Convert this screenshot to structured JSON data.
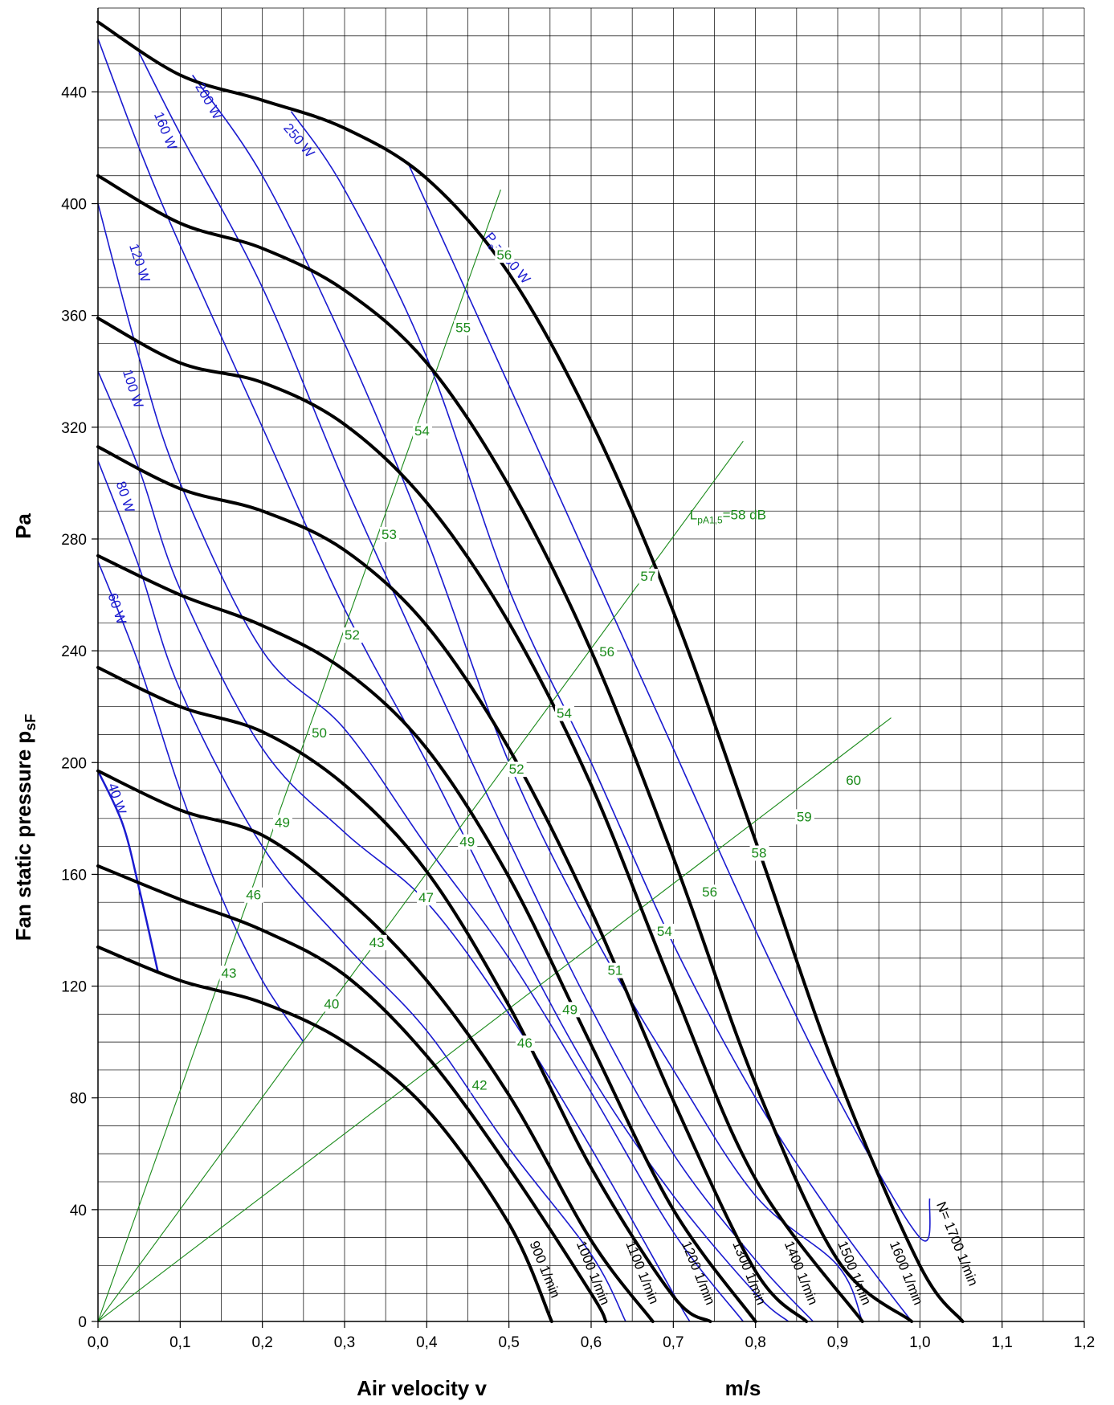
{
  "chart_data": {
    "type": "line",
    "title": "",
    "xlabel": "Air velocity v",
    "xunit": "m/s",
    "ylabel": "Fan static pressure p",
    "ylabel_sub": "sF",
    "yunit": "Pa",
    "xlim": [
      0,
      1.2
    ],
    "ylim": [
      0,
      470
    ],
    "grid": true,
    "x_ticks": [
      "0,0",
      "0,1",
      "0,2",
      "0,3",
      "0,4",
      "0,5",
      "0,6",
      "0,7",
      "0,8",
      "0,9",
      "1,0",
      "1,1",
      "1,2"
    ],
    "x_tick_values": [
      0,
      0.1,
      0.2,
      0.3,
      0.4,
      0.5,
      0.6,
      0.7,
      0.8,
      0.9,
      1.0,
      1.1,
      1.2
    ],
    "y_ticks": [
      "0",
      "40",
      "80",
      "120",
      "160",
      "200",
      "240",
      "280",
      "320",
      "360",
      "400",
      "440"
    ],
    "y_tick_values": [
      0,
      40,
      80,
      120,
      160,
      200,
      240,
      280,
      320,
      360,
      400,
      440
    ],
    "colors": {
      "speed": "#000000",
      "power": "#1a1ad0",
      "noise": "#1a8a1a"
    },
    "speed_curves": [
      {
        "name": "900 1/min",
        "points": [
          [
            0,
            134
          ],
          [
            0.1,
            122
          ],
          [
            0.2,
            114
          ],
          [
            0.3,
            100
          ],
          [
            0.4,
            76
          ],
          [
            0.5,
            35
          ],
          [
            0.552,
            0
          ]
        ]
      },
      {
        "name": "1000 1/min",
        "points": [
          [
            0,
            163
          ],
          [
            0.1,
            151
          ],
          [
            0.2,
            140
          ],
          [
            0.3,
            124
          ],
          [
            0.4,
            95
          ],
          [
            0.5,
            55
          ],
          [
            0.6,
            10
          ],
          [
            0.618,
            0
          ]
        ]
      },
      {
        "name": "1100 1/min",
        "points": [
          [
            0,
            197
          ],
          [
            0.1,
            183
          ],
          [
            0.2,
            174
          ],
          [
            0.3,
            152
          ],
          [
            0.4,
            122
          ],
          [
            0.5,
            81
          ],
          [
            0.6,
            29
          ],
          [
            0.675,
            0
          ]
        ]
      },
      {
        "name": "1200 1/min",
        "points": [
          [
            0,
            234
          ],
          [
            0.1,
            220
          ],
          [
            0.2,
            211
          ],
          [
            0.3,
            192
          ],
          [
            0.4,
            161
          ],
          [
            0.5,
            113
          ],
          [
            0.6,
            55
          ],
          [
            0.7,
            9
          ],
          [
            0.745,
            0
          ]
        ]
      },
      {
        "name": "1300 1/min",
        "points": [
          [
            0,
            274
          ],
          [
            0.1,
            260
          ],
          [
            0.2,
            249
          ],
          [
            0.3,
            233
          ],
          [
            0.4,
            205
          ],
          [
            0.5,
            159
          ],
          [
            0.6,
            99
          ],
          [
            0.7,
            40
          ],
          [
            0.8,
            0
          ]
        ]
      },
      {
        "name": "1400 1/min",
        "points": [
          [
            0,
            313
          ],
          [
            0.1,
            298
          ],
          [
            0.2,
            290
          ],
          [
            0.3,
            276
          ],
          [
            0.4,
            249
          ],
          [
            0.5,
            205
          ],
          [
            0.6,
            147
          ],
          [
            0.7,
            79
          ],
          [
            0.8,
            18
          ],
          [
            0.862,
            0
          ]
        ]
      },
      {
        "name": "1500 1/min",
        "points": [
          [
            0,
            359
          ],
          [
            0.1,
            343
          ],
          [
            0.2,
            336
          ],
          [
            0.3,
            321
          ],
          [
            0.4,
            293
          ],
          [
            0.5,
            250
          ],
          [
            0.6,
            192
          ],
          [
            0.7,
            119
          ],
          [
            0.8,
            51
          ],
          [
            0.93,
            0
          ]
        ]
      },
      {
        "name": "1600 1/min",
        "points": [
          [
            0,
            410
          ],
          [
            0.1,
            393
          ],
          [
            0.2,
            384
          ],
          [
            0.3,
            369
          ],
          [
            0.4,
            343
          ],
          [
            0.5,
            299
          ],
          [
            0.6,
            240
          ],
          [
            0.7,
            166
          ],
          [
            0.8,
            85
          ],
          [
            0.9,
            22
          ],
          [
            0.99,
            0
          ]
        ]
      },
      {
        "name": "N= 1700 1/min",
        "points": [
          [
            0,
            465
          ],
          [
            0.1,
            446
          ],
          [
            0.2,
            437
          ],
          [
            0.3,
            427
          ],
          [
            0.4,
            409
          ],
          [
            0.5,
            375
          ],
          [
            0.6,
            322
          ],
          [
            0.7,
            254
          ],
          [
            0.8,
            172
          ],
          [
            0.9,
            88
          ],
          [
            1.0,
            20
          ],
          [
            1.052,
            0
          ]
        ]
      }
    ],
    "speed_labels": [
      {
        "text": "900 1/min",
        "x": 0.525,
        "y": 28,
        "angle": 68
      },
      {
        "text": "1000 1/min",
        "x": 0.582,
        "y": 28,
        "angle": 68
      },
      {
        "text": "1100 1/min",
        "x": 0.642,
        "y": 28,
        "angle": 68
      },
      {
        "text": "1200 1/min",
        "x": 0.71,
        "y": 28,
        "angle": 68
      },
      {
        "text": "1300 1/min",
        "x": 0.772,
        "y": 28,
        "angle": 68
      },
      {
        "text": "1400 1/min",
        "x": 0.835,
        "y": 28,
        "angle": 68
      },
      {
        "text": "1500 1/min",
        "x": 0.9,
        "y": 28,
        "angle": 68
      },
      {
        "text": "1600 1/min",
        "x": 0.963,
        "y": 28,
        "angle": 68
      },
      {
        "text": "N= 1700 1/min",
        "x": 1.02,
        "y": 42,
        "angle": 68
      }
    ],
    "power_curves": [
      {
        "name": "40 W",
        "points": [
          [
            0,
            197
          ],
          [
            0.03,
            178
          ],
          [
            0.05,
            155
          ],
          [
            0.073,
            125
          ]
        ]
      },
      {
        "name": "60 W",
        "points": [
          [
            0,
            272
          ],
          [
            0.05,
            235
          ],
          [
            0.1,
            190
          ],
          [
            0.15,
            152
          ],
          [
            0.2,
            122
          ],
          [
            0.25,
            100
          ]
        ]
      },
      {
        "name": "80 W",
        "points": [
          [
            0,
            308
          ],
          [
            0.05,
            270
          ],
          [
            0.1,
            226
          ],
          [
            0.2,
            170
          ],
          [
            0.3,
            135
          ],
          [
            0.4,
            104
          ],
          [
            0.5,
            62
          ],
          [
            0.6,
            24
          ],
          [
            0.642,
            0
          ]
        ]
      },
      {
        "name": "100 W",
        "points": [
          [
            0,
            340
          ],
          [
            0.05,
            305
          ],
          [
            0.1,
            262
          ],
          [
            0.2,
            205
          ],
          [
            0.3,
            175
          ],
          [
            0.4,
            150
          ],
          [
            0.5,
            110
          ],
          [
            0.6,
            62
          ],
          [
            0.7,
            10
          ],
          [
            0.72,
            0
          ]
        ]
      },
      {
        "name": "120 W",
        "points": [
          [
            0,
            400
          ],
          [
            0.05,
            345
          ],
          [
            0.1,
            300
          ],
          [
            0.2,
            240
          ],
          [
            0.3,
            212
          ],
          [
            0.4,
            170
          ],
          [
            0.5,
            130
          ],
          [
            0.6,
            82
          ],
          [
            0.7,
            32
          ],
          [
            0.785,
            0
          ]
        ]
      },
      {
        "name": "160 W",
        "points": [
          [
            0,
            459
          ],
          [
            0.05,
            420
          ],
          [
            0.1,
            385
          ],
          [
            0.2,
            320
          ],
          [
            0.3,
            255
          ],
          [
            0.4,
            200
          ],
          [
            0.5,
            142
          ],
          [
            0.6,
            88
          ],
          [
            0.7,
            45
          ],
          [
            0.8,
            10
          ],
          [
            0.84,
            0
          ]
        ]
      },
      {
        "name": "200 W",
        "points": [
          [
            0.05,
            454
          ],
          [
            0.1,
            425
          ],
          [
            0.2,
            370
          ],
          [
            0.3,
            300
          ],
          [
            0.4,
            235
          ],
          [
            0.5,
            172
          ],
          [
            0.6,
            112
          ],
          [
            0.7,
            60
          ],
          [
            0.8,
            22
          ],
          [
            0.87,
            0
          ]
        ]
      },
      {
        "name": "250 W",
        "points": [
          [
            0.115,
            446
          ],
          [
            0.2,
            410
          ],
          [
            0.3,
            350
          ],
          [
            0.4,
            280
          ],
          [
            0.5,
            200
          ],
          [
            0.6,
            140
          ],
          [
            0.7,
            90
          ],
          [
            0.8,
            45
          ],
          [
            0.9,
            20
          ],
          [
            0.93,
            0
          ]
        ]
      },
      {
        "name": "P_e=300 W",
        "points": [
          [
            0.235,
            433
          ],
          [
            0.3,
            405
          ],
          [
            0.4,
            345
          ],
          [
            0.5,
            262
          ],
          [
            0.6,
            200
          ],
          [
            0.7,
            135
          ],
          [
            0.8,
            80
          ],
          [
            0.9,
            35
          ],
          [
            0.99,
            0
          ]
        ]
      },
      {
        "name": "",
        "points": [
          [
            0.378,
            414
          ],
          [
            0.5,
            335
          ],
          [
            0.6,
            270
          ],
          [
            0.7,
            205
          ],
          [
            0.8,
            140
          ],
          [
            0.9,
            80
          ],
          [
            1.0,
            30
          ],
          [
            1.012,
            44
          ]
        ]
      }
    ],
    "power_labels": [
      {
        "text": "40 W",
        "x": 0.012,
        "y": 192,
        "angle": 72
      },
      {
        "text": "60 W",
        "x": 0.012,
        "y": 260,
        "angle": 72
      },
      {
        "text": "80 W",
        "x": 0.022,
        "y": 300,
        "angle": 72
      },
      {
        "text": "100 W",
        "x": 0.03,
        "y": 340,
        "angle": 72
      },
      {
        "text": "120 W",
        "x": 0.038,
        "y": 385,
        "angle": 72
      },
      {
        "text": "160 W",
        "x": 0.068,
        "y": 432,
        "angle": 68
      },
      {
        "text": "200 W",
        "x": 0.118,
        "y": 442,
        "angle": 60
      },
      {
        "text": "250 W",
        "x": 0.225,
        "y": 427,
        "angle": 50
      },
      {
        "text": "P",
        "sub": "e",
        "rest": "=300 W",
        "x": 0.47,
        "y": 388,
        "angle": 50
      }
    ],
    "noise_lines": [
      {
        "name": "A",
        "points": [
          [
            0,
            0
          ],
          [
            0.49,
            405
          ]
        ]
      },
      {
        "name": "B",
        "points": [
          [
            0,
            0
          ],
          [
            0.785,
            315
          ]
        ]
      },
      {
        "name": "C",
        "points": [
          [
            0,
            0
          ],
          [
            0.965,
            216
          ]
        ]
      }
    ],
    "noise_labels": [
      {
        "text": "56",
        "x": 0.485,
        "y": 380
      },
      {
        "text": "55",
        "x": 0.435,
        "y": 354
      },
      {
        "text": "54",
        "x": 0.385,
        "y": 317
      },
      {
        "text": "53",
        "x": 0.345,
        "y": 280
      },
      {
        "text": "52",
        "x": 0.3,
        "y": 244
      },
      {
        "text": "50",
        "x": 0.26,
        "y": 209
      },
      {
        "text": "49",
        "x": 0.215,
        "y": 177
      },
      {
        "text": "46",
        "x": 0.18,
        "y": 151
      },
      {
        "text": "43",
        "x": 0.15,
        "y": 123
      },
      {
        "text": "L",
        "sub": "pA1,5",
        "rest": "=58 dB",
        "x": 0.72,
        "y": 287
      },
      {
        "text": "57",
        "x": 0.66,
        "y": 265
      },
      {
        "text": "56",
        "x": 0.61,
        "y": 238
      },
      {
        "text": "54",
        "x": 0.558,
        "y": 216
      },
      {
        "text": "52",
        "x": 0.5,
        "y": 196
      },
      {
        "text": "49",
        "x": 0.44,
        "y": 170
      },
      {
        "text": "47",
        "x": 0.39,
        "y": 150
      },
      {
        "text": "43",
        "x": 0.33,
        "y": 134
      },
      {
        "text": "40",
        "x": 0.275,
        "y": 112
      },
      {
        "text": "60",
        "x": 0.91,
        "y": 192
      },
      {
        "text": "59",
        "x": 0.85,
        "y": 179
      },
      {
        "text": "58",
        "x": 0.795,
        "y": 166
      },
      {
        "text": "56",
        "x": 0.735,
        "y": 152
      },
      {
        "text": "54",
        "x": 0.68,
        "y": 138
      },
      {
        "text": "51",
        "x": 0.62,
        "y": 124
      },
      {
        "text": "49",
        "x": 0.565,
        "y": 110
      },
      {
        "text": "46",
        "x": 0.51,
        "y": 98
      },
      {
        "text": "42",
        "x": 0.455,
        "y": 83
      }
    ]
  }
}
